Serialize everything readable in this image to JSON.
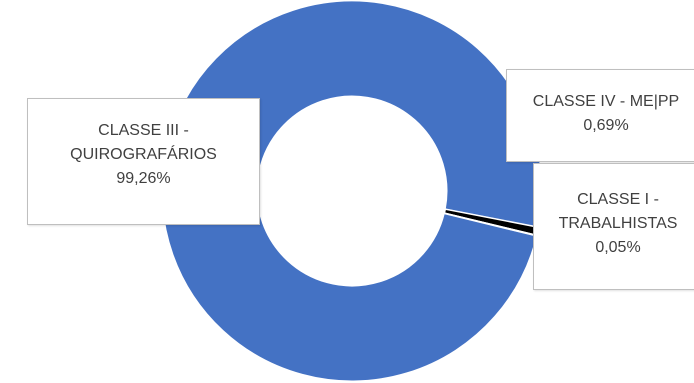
{
  "chart_data": {
    "type": "pie",
    "style": "donut",
    "colors": {
      "main": "#4472C4",
      "slice_edge": "#ffffff",
      "small": "#000000"
    },
    "series": [
      {
        "slices": [
          {
            "category": "CLASSE IV - ME|PP",
            "percent_label": "0,69%",
            "value": 0.69,
            "label_lines": [
              "CLASSE IV - ME|PP",
              "0,69%"
            ]
          },
          {
            "category": "CLASSE I - TRABALHISTAS",
            "percent_label": "0,05%",
            "value": 0.05,
            "label_lines": [
              "CLASSE I -",
              "TRABALHISTAS",
              "0,05%"
            ]
          },
          {
            "category": "CLASSE III - QUIROGRAFÁRIOS",
            "percent_label": "99,26%",
            "value": 99.26,
            "label_lines": [
              "CLASSE III -",
              "QUIROGRAFÁRIOS",
              "99,26%"
            ]
          }
        ]
      }
    ]
  }
}
